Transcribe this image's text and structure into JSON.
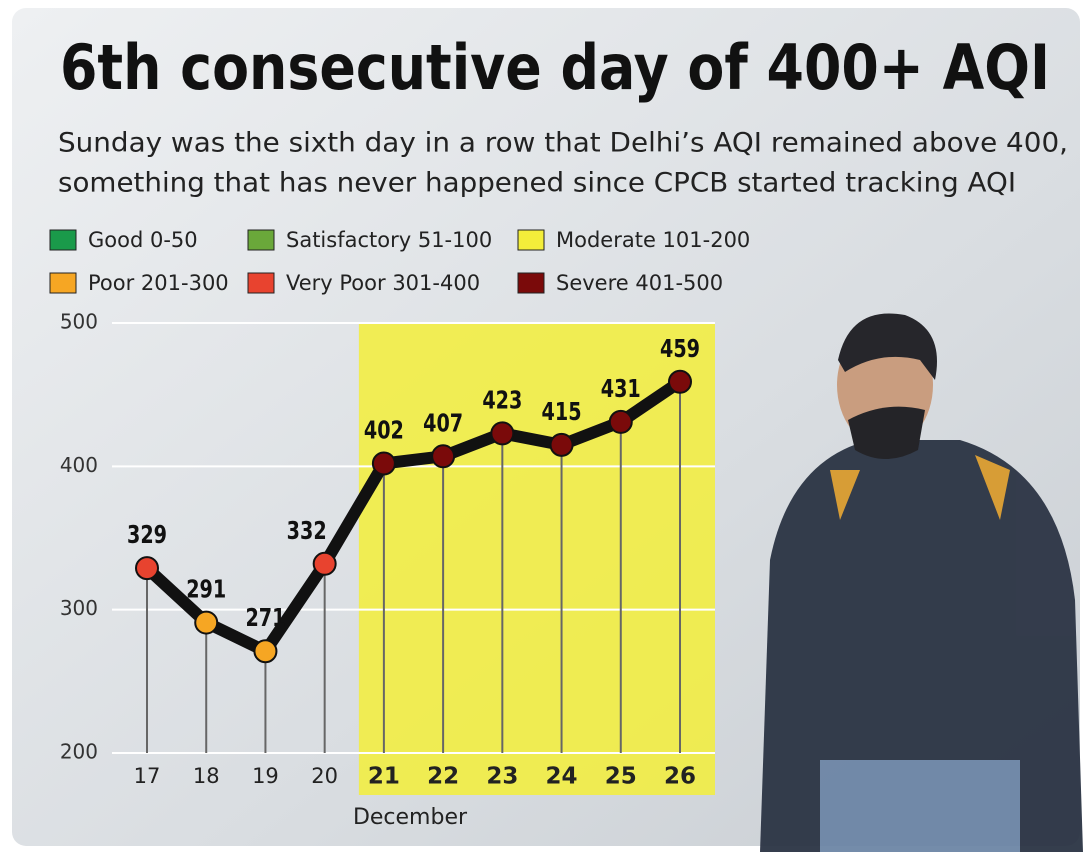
{
  "chart_data": {
    "type": "line",
    "title": "6th consecutive day of 400+ AQI",
    "subtitle": [
      "Sunday was the sixth day in a row that Delhi’s AQI remained above 400,",
      "something that has never happened since CPCB started tracking AQI"
    ],
    "legend": [
      {
        "label": "Good 0-50",
        "color": "#1a9a4a"
      },
      {
        "label": "Satisfactory 51-100",
        "color": "#6aa83a"
      },
      {
        "label": "Moderate 101-200",
        "color": "#f3ee3a"
      },
      {
        "label": "Poor 201-300",
        "color": "#f6a623"
      },
      {
        "label": "Very Poor 301-400",
        "color": "#e8432f"
      },
      {
        "label": "Severe 401-500",
        "color": "#7a0a0a"
      }
    ],
    "categories": [
      "17",
      "18",
      "19",
      "20",
      "21",
      "22",
      "23",
      "24",
      "25",
      "26"
    ],
    "values": [
      329,
      291,
      271,
      332,
      402,
      407,
      423,
      415,
      431,
      459
    ],
    "point_colors": [
      "#e8432f",
      "#f6a623",
      "#f6a623",
      "#e8432f",
      "#7a0a0a",
      "#7a0a0a",
      "#7a0a0a",
      "#7a0a0a",
      "#7a0a0a",
      "#7a0a0a"
    ],
    "line_color": "#111111",
    "xlabel": "December",
    "ylim": [
      200,
      500
    ],
    "yticks": [
      200,
      300,
      400,
      500
    ],
    "grid": true,
    "highlight": {
      "from": "21",
      "to": "26",
      "color": "#f3ee3a"
    }
  }
}
